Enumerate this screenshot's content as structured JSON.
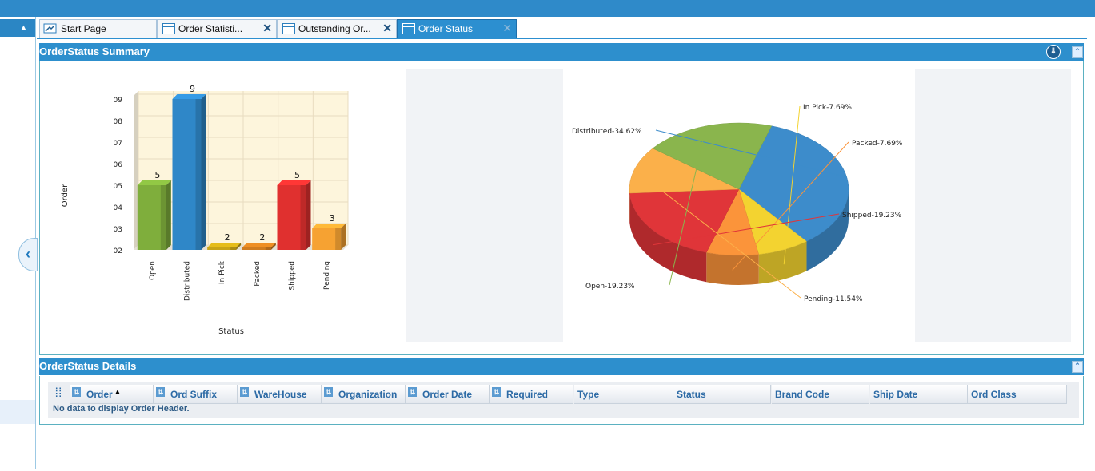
{
  "tabs": [
    {
      "label": "Start Page",
      "icon": "start-page-icon",
      "closable": false
    },
    {
      "label": "Order Statisti...",
      "icon": "window-icon",
      "closable": true
    },
    {
      "label": "Outstanding Or...",
      "icon": "window-icon",
      "closable": true
    },
    {
      "label": "Order Status",
      "icon": "window-icon",
      "closable": true,
      "active": true
    }
  ],
  "summary": {
    "title": "OrderStatus Summary"
  },
  "details": {
    "title": "OrderStatus Details",
    "columns": [
      {
        "label": "Order",
        "sortable": true,
        "sorted": "asc"
      },
      {
        "label": "Ord Suffix",
        "sortable": true
      },
      {
        "label": "WareHouse",
        "sortable": true
      },
      {
        "label": "Organization",
        "sortable": true
      },
      {
        "label": "Order Date",
        "sortable": true
      },
      {
        "label": "Required",
        "sortable": true
      },
      {
        "label": "Type",
        "sortable": false
      },
      {
        "label": "Status",
        "sortable": false
      },
      {
        "label": "Brand Code",
        "sortable": false
      },
      {
        "label": "Ship Date",
        "sortable": false
      },
      {
        "label": "Ord Class",
        "sortable": false
      }
    ],
    "empty_message": "No data to display Order Header."
  },
  "chart_data": [
    {
      "type": "bar",
      "categories": [
        "Open",
        "Distributed",
        "In Pick",
        "Packed",
        "Shipped",
        "Pending"
      ],
      "values": [
        5,
        9,
        2,
        2,
        5,
        3
      ],
      "colors": [
        "#7fae3c",
        "#2f87c8",
        "#c8a417",
        "#d07c1e",
        "#e0302f",
        "#f6a232"
      ],
      "y_tick_labels": [
        "02",
        "03",
        "04",
        "05",
        "06",
        "07",
        "08",
        "09"
      ],
      "ylim": [
        2,
        9
      ],
      "xlabel": "Status",
      "ylabel": "Order",
      "grid": true
    },
    {
      "type": "pie",
      "labels": [
        "Distributed",
        "In Pick",
        "Packed",
        "Shipped",
        "Pending",
        "Open"
      ],
      "values": [
        34.62,
        7.69,
        7.69,
        19.23,
        11.54,
        19.23
      ],
      "display_labels": [
        "Distributed-34.62%",
        "In Pick-7.69%",
        "Packed-7.69%",
        "Shipped-19.23%",
        "Pending-11.54%",
        "Open-19.23%"
      ],
      "colors": [
        "#3d8ccb",
        "#f3d330",
        "#fb943a",
        "#e03539",
        "#fbb04a",
        "#8ab54d"
      ]
    }
  ]
}
